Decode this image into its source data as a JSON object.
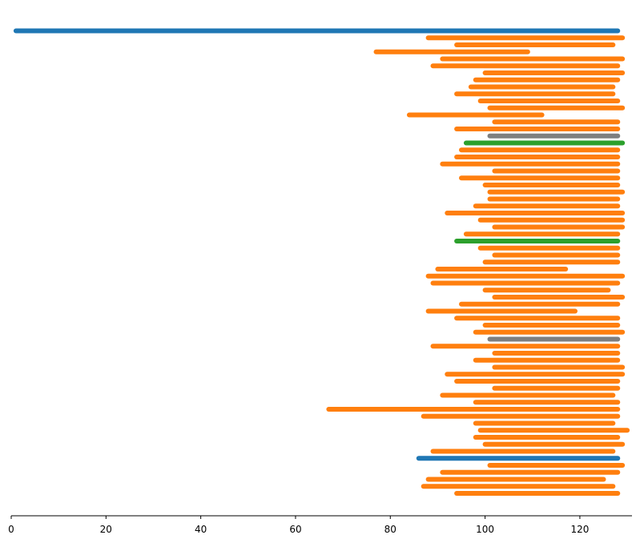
{
  "chart_data": {
    "type": "bar",
    "orientation": "horizontal",
    "title": "",
    "xlabel": "",
    "ylabel": "",
    "xlim": [
      0,
      131
    ],
    "grid": false,
    "legend": "none",
    "x_ticks": [
      0,
      20,
      40,
      60,
      80,
      100,
      120
    ],
    "x_tick_labels": [
      "0",
      "20",
      "40",
      "60",
      "80",
      "100",
      "120"
    ],
    "colors": {
      "blue": "#1f77b4",
      "orange": "#ff7f0e",
      "green": "#2ca02c",
      "gray": "#7f7f7f"
    },
    "intervals": [
      {
        "start": 1,
        "end": 128,
        "color": "blue"
      },
      {
        "start": 88,
        "end": 129,
        "color": "orange"
      },
      {
        "start": 94,
        "end": 127,
        "color": "orange"
      },
      {
        "start": 77,
        "end": 109,
        "color": "orange"
      },
      {
        "start": 91,
        "end": 129,
        "color": "orange"
      },
      {
        "start": 89,
        "end": 128,
        "color": "orange"
      },
      {
        "start": 100,
        "end": 129,
        "color": "orange"
      },
      {
        "start": 98,
        "end": 128,
        "color": "orange"
      },
      {
        "start": 97,
        "end": 127,
        "color": "orange"
      },
      {
        "start": 94,
        "end": 127,
        "color": "orange"
      },
      {
        "start": 99,
        "end": 128,
        "color": "orange"
      },
      {
        "start": 101,
        "end": 129,
        "color": "orange"
      },
      {
        "start": 84,
        "end": 112,
        "color": "orange"
      },
      {
        "start": 102,
        "end": 128,
        "color": "orange"
      },
      {
        "start": 94,
        "end": 128,
        "color": "orange"
      },
      {
        "start": 101,
        "end": 128,
        "color": "gray"
      },
      {
        "start": 96,
        "end": 129,
        "color": "green"
      },
      {
        "start": 95,
        "end": 128,
        "color": "orange"
      },
      {
        "start": 94,
        "end": 128,
        "color": "orange"
      },
      {
        "start": 91,
        "end": 128,
        "color": "orange"
      },
      {
        "start": 102,
        "end": 128,
        "color": "orange"
      },
      {
        "start": 95,
        "end": 128,
        "color": "orange"
      },
      {
        "start": 100,
        "end": 128,
        "color": "orange"
      },
      {
        "start": 101,
        "end": 129,
        "color": "orange"
      },
      {
        "start": 101,
        "end": 128,
        "color": "orange"
      },
      {
        "start": 98,
        "end": 128,
        "color": "orange"
      },
      {
        "start": 92,
        "end": 129,
        "color": "orange"
      },
      {
        "start": 99,
        "end": 129,
        "color": "orange"
      },
      {
        "start": 102,
        "end": 129,
        "color": "orange"
      },
      {
        "start": 96,
        "end": 128,
        "color": "orange"
      },
      {
        "start": 94,
        "end": 128,
        "color": "green"
      },
      {
        "start": 99,
        "end": 128,
        "color": "orange"
      },
      {
        "start": 102,
        "end": 128,
        "color": "orange"
      },
      {
        "start": 100,
        "end": 128,
        "color": "orange"
      },
      {
        "start": 90,
        "end": 117,
        "color": "orange"
      },
      {
        "start": 88,
        "end": 129,
        "color": "orange"
      },
      {
        "start": 89,
        "end": 128,
        "color": "orange"
      },
      {
        "start": 100,
        "end": 126,
        "color": "orange"
      },
      {
        "start": 102,
        "end": 129,
        "color": "orange"
      },
      {
        "start": 95,
        "end": 128,
        "color": "orange"
      },
      {
        "start": 88,
        "end": 119,
        "color": "orange"
      },
      {
        "start": 94,
        "end": 128,
        "color": "orange"
      },
      {
        "start": 100,
        "end": 128,
        "color": "orange"
      },
      {
        "start": 98,
        "end": 129,
        "color": "orange"
      },
      {
        "start": 101,
        "end": 128,
        "color": "gray"
      },
      {
        "start": 89,
        "end": 128,
        "color": "orange"
      },
      {
        "start": 102,
        "end": 128,
        "color": "orange"
      },
      {
        "start": 98,
        "end": 128,
        "color": "orange"
      },
      {
        "start": 102,
        "end": 129,
        "color": "orange"
      },
      {
        "start": 92,
        "end": 129,
        "color": "orange"
      },
      {
        "start": 94,
        "end": 128,
        "color": "orange"
      },
      {
        "start": 102,
        "end": 128,
        "color": "orange"
      },
      {
        "start": 91,
        "end": 127,
        "color": "orange"
      },
      {
        "start": 98,
        "end": 128,
        "color": "orange"
      },
      {
        "start": 67,
        "end": 128,
        "color": "orange"
      },
      {
        "start": 87,
        "end": 128,
        "color": "orange"
      },
      {
        "start": 98,
        "end": 127,
        "color": "orange"
      },
      {
        "start": 99,
        "end": 130,
        "color": "orange"
      },
      {
        "start": 98,
        "end": 128,
        "color": "orange"
      },
      {
        "start": 100,
        "end": 129,
        "color": "orange"
      },
      {
        "start": 89,
        "end": 127,
        "color": "orange"
      },
      {
        "start": 86,
        "end": 128,
        "color": "blue"
      },
      {
        "start": 101,
        "end": 129,
        "color": "orange"
      },
      {
        "start": 91,
        "end": 128,
        "color": "orange"
      },
      {
        "start": 88,
        "end": 125,
        "color": "orange"
      },
      {
        "start": 87,
        "end": 127,
        "color": "orange"
      },
      {
        "start": 94,
        "end": 128,
        "color": "orange"
      }
    ]
  }
}
